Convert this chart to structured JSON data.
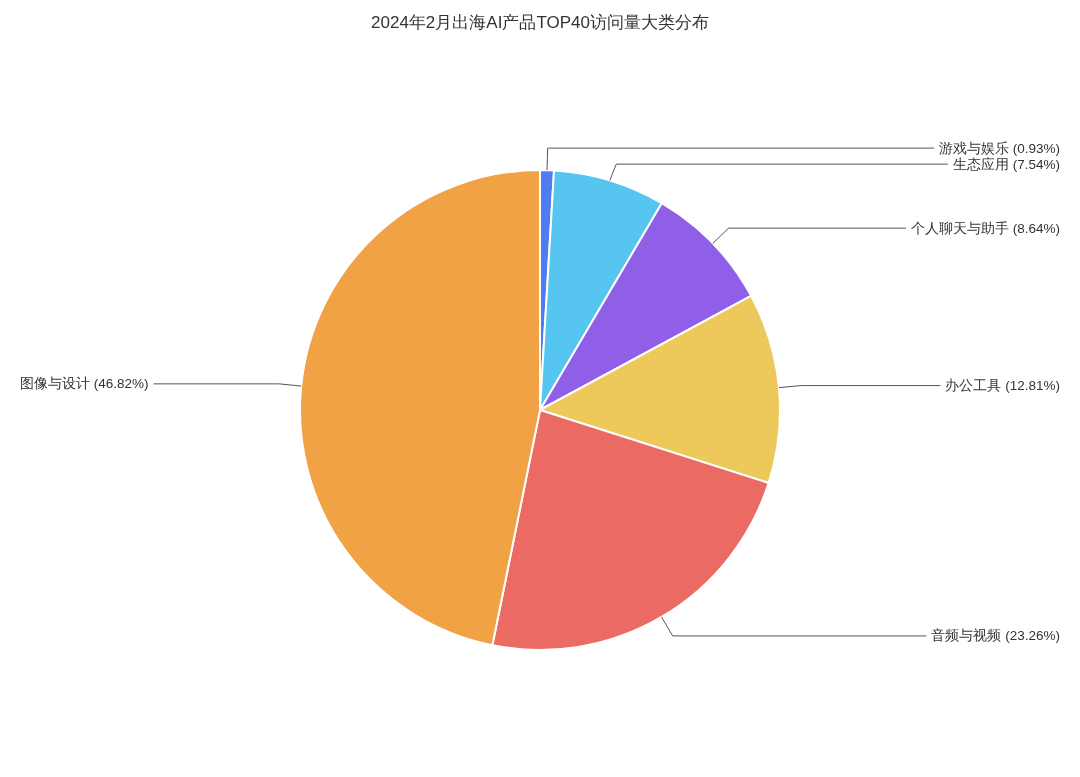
{
  "chart_data": {
    "type": "pie",
    "title": "2024年2月出海AI产品TOP40访问量大类分布",
    "categories": [
      "游戏与娱乐",
      "生态应用",
      "个人聊天与助手",
      "办公工具",
      "音频与视频",
      "图像与设计"
    ],
    "values": [
      0.93,
      7.54,
      8.64,
      12.81,
      23.26,
      46.82
    ],
    "value_labels": [
      "(0.93%)",
      "(7.54%)",
      "(8.64%)",
      "(12.81%)",
      "(23.26%)",
      "(46.82%)"
    ],
    "colors": [
      "#4f7cf0",
      "#56c5f0",
      "#8f5fe8",
      "#ecc95a",
      "#eb6b64",
      "#f0a244"
    ]
  }
}
